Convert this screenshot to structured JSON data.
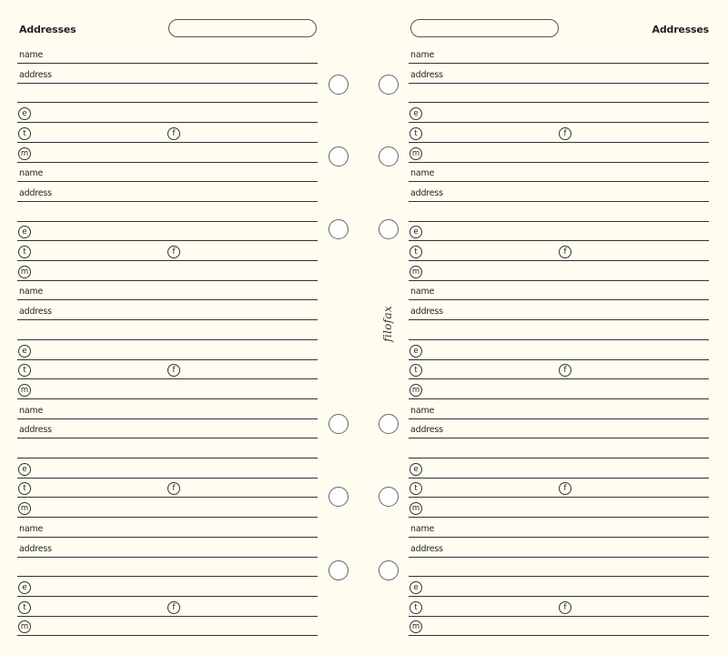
{
  "left_page": {
    "title": "Addresses",
    "labels": {
      "name": "name",
      "address": "address",
      "email": "e",
      "phone": "t",
      "fax": "f",
      "mobile": "m"
    }
  },
  "right_page": {
    "title": "Addresses",
    "labels": {
      "name": "name",
      "address": "address",
      "email": "e",
      "phone": "t",
      "fax": "f",
      "mobile": "m"
    }
  },
  "brand": "filofax",
  "entries_per_page": 5
}
